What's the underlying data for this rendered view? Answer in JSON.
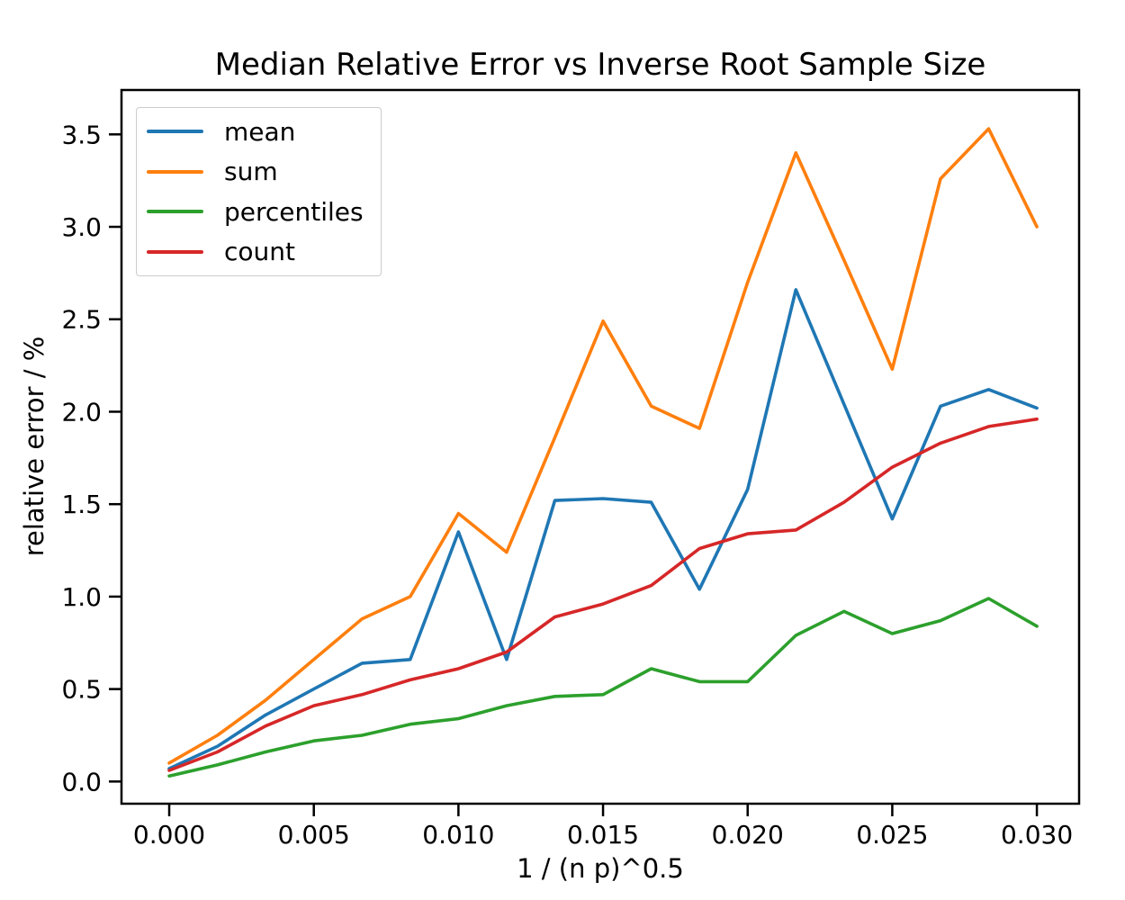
{
  "figure": {
    "background": "#ffffff",
    "text_color": "#000000",
    "spine_color": "#000000"
  },
  "chart_data": {
    "type": "line",
    "title": "Median Relative Error vs Inverse Root Sample Size",
    "xlabel": "1 / (n p)^0.5",
    "ylabel": "relative error / %",
    "grid": false,
    "legend_position": "upper left",
    "xlim": [
      -0.00165,
      0.03146
    ],
    "ylim": [
      -0.12,
      3.74
    ],
    "xticks": {
      "values": [
        0.0,
        0.005,
        0.01,
        0.015,
        0.02,
        0.025,
        0.03
      ],
      "labels": [
        "0.000",
        "0.005",
        "0.010",
        "0.015",
        "0.020",
        "0.025",
        "0.030"
      ]
    },
    "yticks": {
      "values": [
        0.0,
        0.5,
        1.0,
        1.5,
        2.0,
        2.5,
        3.0,
        3.5
      ],
      "labels": [
        "0.0",
        "0.5",
        "1.0",
        "1.5",
        "2.0",
        "2.5",
        "3.0",
        "3.5"
      ]
    },
    "x": [
      0.0,
      0.001667,
      0.003333,
      0.005,
      0.006667,
      0.008333,
      0.01,
      0.011667,
      0.013333,
      0.015,
      0.016667,
      0.018333,
      0.02,
      0.021667,
      0.023333,
      0.025,
      0.026667,
      0.028333,
      0.03
    ],
    "series": [
      {
        "name": "mean",
        "color": "#1f77b4",
        "values": [
          0.07,
          0.19,
          0.36,
          0.5,
          0.64,
          0.66,
          1.35,
          0.66,
          1.52,
          1.53,
          1.51,
          1.04,
          1.58,
          2.66,
          2.04,
          1.42,
          2.03,
          2.12,
          2.02
        ]
      },
      {
        "name": "sum",
        "color": "#ff7f0e",
        "values": [
          0.1,
          0.25,
          0.44,
          0.66,
          0.88,
          1.0,
          1.45,
          1.24,
          1.86,
          2.49,
          2.03,
          1.91,
          2.7,
          3.4,
          2.82,
          2.23,
          3.26,
          3.53,
          3.0
        ]
      },
      {
        "name": "percentiles",
        "color": "#2ca02c",
        "values": [
          0.03,
          0.09,
          0.16,
          0.22,
          0.25,
          0.31,
          0.34,
          0.41,
          0.46,
          0.47,
          0.61,
          0.54,
          0.54,
          0.79,
          0.92,
          0.8,
          0.87,
          0.99,
          0.84
        ]
      },
      {
        "name": "count",
        "color": "#d62728",
        "values": [
          0.06,
          0.16,
          0.3,
          0.41,
          0.47,
          0.55,
          0.61,
          0.7,
          0.89,
          0.96,
          1.06,
          1.26,
          1.34,
          1.36,
          1.51,
          1.7,
          1.83,
          1.92,
          1.96
        ]
      }
    ]
  }
}
